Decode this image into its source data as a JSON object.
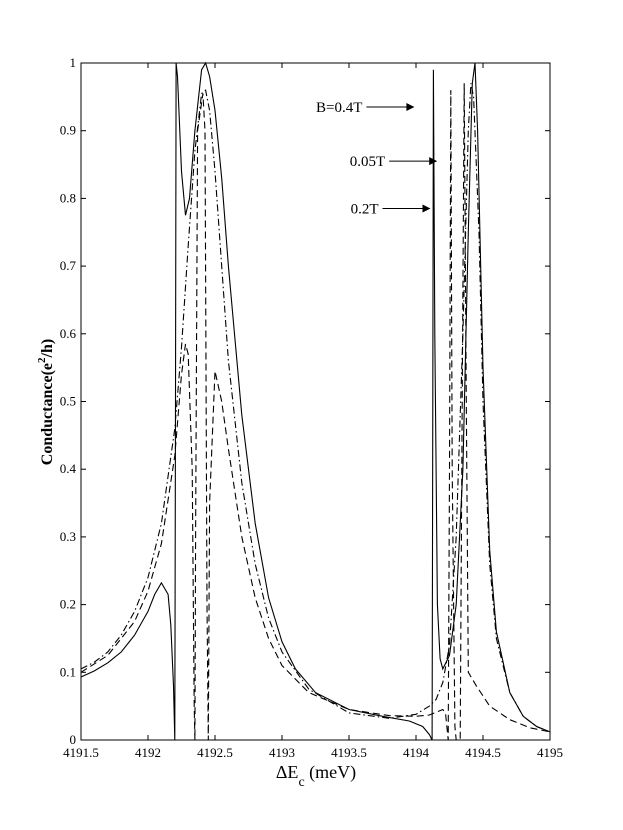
{
  "chart_data": {
    "type": "line",
    "ylabel": "Conductance(e²/h)",
    "ylabel_parts": {
      "main": "Conductance(e",
      "sup": "2",
      "tail": "/h)"
    },
    "xlabel_parts": {
      "main": "ΔE",
      "sub": "c",
      "tail": " (meV)"
    },
    "xlim": [
      4191.5,
      4195
    ],
    "ylim": [
      0,
      1
    ],
    "xticks": [
      "4191.5",
      "4192",
      "4192.5",
      "4193",
      "4193.5",
      "4194",
      "4194.5",
      "4195"
    ],
    "yticks": [
      "0",
      "0.1",
      "0.2",
      "0.3",
      "0.4",
      "0.5",
      "0.6",
      "0.7",
      "0.8",
      "0.9",
      "1"
    ],
    "grid": false,
    "annotations": [
      {
        "text": "B=0.4T",
        "x": 4194.13,
        "y": 0.935
      },
      {
        "text": "0.05T",
        "x": 4194.3,
        "y": 0.855
      },
      {
        "text": "0.2T",
        "x": 4194.25,
        "y": 0.785
      }
    ],
    "series": [
      {
        "style": "solid",
        "points": [
          [
            4191.5,
            0.093
          ],
          [
            4191.6,
            0.102
          ],
          [
            4191.7,
            0.114
          ],
          [
            4191.8,
            0.13
          ],
          [
            4191.9,
            0.155
          ],
          [
            4192.0,
            0.19
          ],
          [
            4192.05,
            0.215
          ],
          [
            4192.1,
            0.232
          ],
          [
            4192.15,
            0.215
          ],
          [
            4192.17,
            0.17
          ],
          [
            4192.19,
            0.08
          ],
          [
            4192.2,
            0.0
          ],
          [
            4192.205,
            0.5
          ],
          [
            4192.21,
            1.0
          ],
          [
            4192.22,
            0.98
          ],
          [
            4192.25,
            0.84
          ],
          [
            4192.28,
            0.775
          ],
          [
            4192.31,
            0.8
          ],
          [
            4192.35,
            0.9
          ],
          [
            4192.4,
            0.99
          ],
          [
            4192.43,
            1.0
          ],
          [
            4192.46,
            0.98
          ],
          [
            4192.5,
            0.93
          ],
          [
            4192.55,
            0.83
          ],
          [
            4192.6,
            0.7
          ],
          [
            4192.7,
            0.48
          ],
          [
            4192.8,
            0.32
          ],
          [
            4192.9,
            0.21
          ],
          [
            4193.0,
            0.145
          ],
          [
            4193.1,
            0.105
          ],
          [
            4193.25,
            0.07
          ],
          [
            4193.5,
            0.045
          ],
          [
            4193.75,
            0.035
          ],
          [
            4193.95,
            0.028
          ],
          [
            4194.05,
            0.02
          ],
          [
            4194.1,
            0.008
          ],
          [
            4194.12,
            0.0
          ],
          [
            4194.125,
            0.5
          ],
          [
            4194.13,
            0.99
          ],
          [
            4194.14,
            0.6
          ],
          [
            4194.16,
            0.2
          ],
          [
            4194.18,
            0.12
          ],
          [
            4194.2,
            0.105
          ],
          [
            4194.25,
            0.125
          ],
          [
            4194.3,
            0.2
          ],
          [
            4194.35,
            0.4
          ],
          [
            4194.39,
            0.75
          ],
          [
            4194.42,
            0.97
          ],
          [
            4194.44,
            1.0
          ],
          [
            4194.46,
            0.9
          ],
          [
            4194.5,
            0.55
          ],
          [
            4194.55,
            0.28
          ],
          [
            4194.6,
            0.16
          ],
          [
            4194.7,
            0.07
          ],
          [
            4194.8,
            0.035
          ],
          [
            4194.9,
            0.02
          ],
          [
            4195.0,
            0.012
          ]
        ]
      },
      {
        "style": "dashed",
        "points": [
          [
            4191.5,
            0.1
          ],
          [
            4191.7,
            0.125
          ],
          [
            4191.9,
            0.175
          ],
          [
            4192.0,
            0.22
          ],
          [
            4192.1,
            0.29
          ],
          [
            4192.2,
            0.42
          ],
          [
            4192.25,
            0.54
          ],
          [
            4192.28,
            0.585
          ],
          [
            4192.3,
            0.57
          ],
          [
            4192.33,
            0.4
          ],
          [
            4192.345,
            0.05
          ],
          [
            4192.35,
            0.0
          ],
          [
            4192.355,
            0.3
          ],
          [
            4192.37,
            0.9
          ],
          [
            4192.41,
            0.955
          ],
          [
            4192.425,
            0.9
          ],
          [
            4192.44,
            0.2
          ],
          [
            4192.45,
            0.0
          ],
          [
            4192.46,
            0.35
          ],
          [
            4192.5,
            0.545
          ],
          [
            4192.55,
            0.5
          ],
          [
            4192.6,
            0.43
          ],
          [
            4192.7,
            0.3
          ],
          [
            4192.8,
            0.21
          ],
          [
            4192.9,
            0.15
          ],
          [
            4193.0,
            0.11
          ],
          [
            4193.2,
            0.07
          ],
          [
            4193.5,
            0.045
          ],
          [
            4193.8,
            0.036
          ],
          [
            4194.0,
            0.035
          ],
          [
            4194.1,
            0.037
          ],
          [
            4194.2,
            0.045
          ],
          [
            4194.22,
            0.04
          ],
          [
            4194.24,
            0.0
          ],
          [
            4194.25,
            0.4
          ],
          [
            4194.26,
            0.96
          ],
          [
            4194.27,
            0.4
          ],
          [
            4194.29,
            0.02
          ],
          [
            4194.3,
            0.0
          ],
          [
            4194.33,
            0.0
          ],
          [
            4194.345,
            0.5
          ],
          [
            4194.36,
            0.97
          ],
          [
            4194.375,
            0.5
          ],
          [
            4194.39,
            0.1
          ],
          [
            4194.45,
            0.08
          ],
          [
            4194.55,
            0.05
          ],
          [
            4194.7,
            0.03
          ],
          [
            4194.85,
            0.018
          ],
          [
            4195.0,
            0.012
          ]
        ]
      },
      {
        "style": "dashdot",
        "points": [
          [
            4191.5,
            0.105
          ],
          [
            4191.6,
            0.115
          ],
          [
            4191.7,
            0.13
          ],
          [
            4191.8,
            0.155
          ],
          [
            4191.9,
            0.19
          ],
          [
            4192.0,
            0.24
          ],
          [
            4192.1,
            0.32
          ],
          [
            4192.2,
            0.46
          ],
          [
            4192.25,
            0.58
          ],
          [
            4192.3,
            0.73
          ],
          [
            4192.35,
            0.87
          ],
          [
            4192.4,
            0.955
          ],
          [
            4192.43,
            0.96
          ],
          [
            4192.46,
            0.93
          ],
          [
            4192.5,
            0.84
          ],
          [
            4192.55,
            0.7
          ],
          [
            4192.6,
            0.56
          ],
          [
            4192.7,
            0.38
          ],
          [
            4192.8,
            0.26
          ],
          [
            4192.9,
            0.18
          ],
          [
            4193.0,
            0.13
          ],
          [
            4193.2,
            0.075
          ],
          [
            4193.5,
            0.04
          ],
          [
            4193.8,
            0.032
          ],
          [
            4194.0,
            0.038
          ],
          [
            4194.1,
            0.05
          ],
          [
            4194.15,
            0.06
          ],
          [
            4194.2,
            0.085
          ],
          [
            4194.25,
            0.14
          ],
          [
            4194.3,
            0.3
          ],
          [
            4194.35,
            0.6
          ],
          [
            4194.39,
            0.9
          ],
          [
            4194.41,
            0.97
          ],
          [
            4194.43,
            0.95
          ],
          [
            4194.47,
            0.75
          ],
          [
            4194.5,
            0.5
          ],
          [
            4194.55,
            0.26
          ],
          [
            4194.6,
            0.15
          ],
          [
            4194.7,
            0.07
          ],
          [
            4194.8,
            0.035
          ],
          [
            4194.9,
            0.02
          ],
          [
            4195.0,
            0.012
          ]
        ]
      }
    ]
  }
}
